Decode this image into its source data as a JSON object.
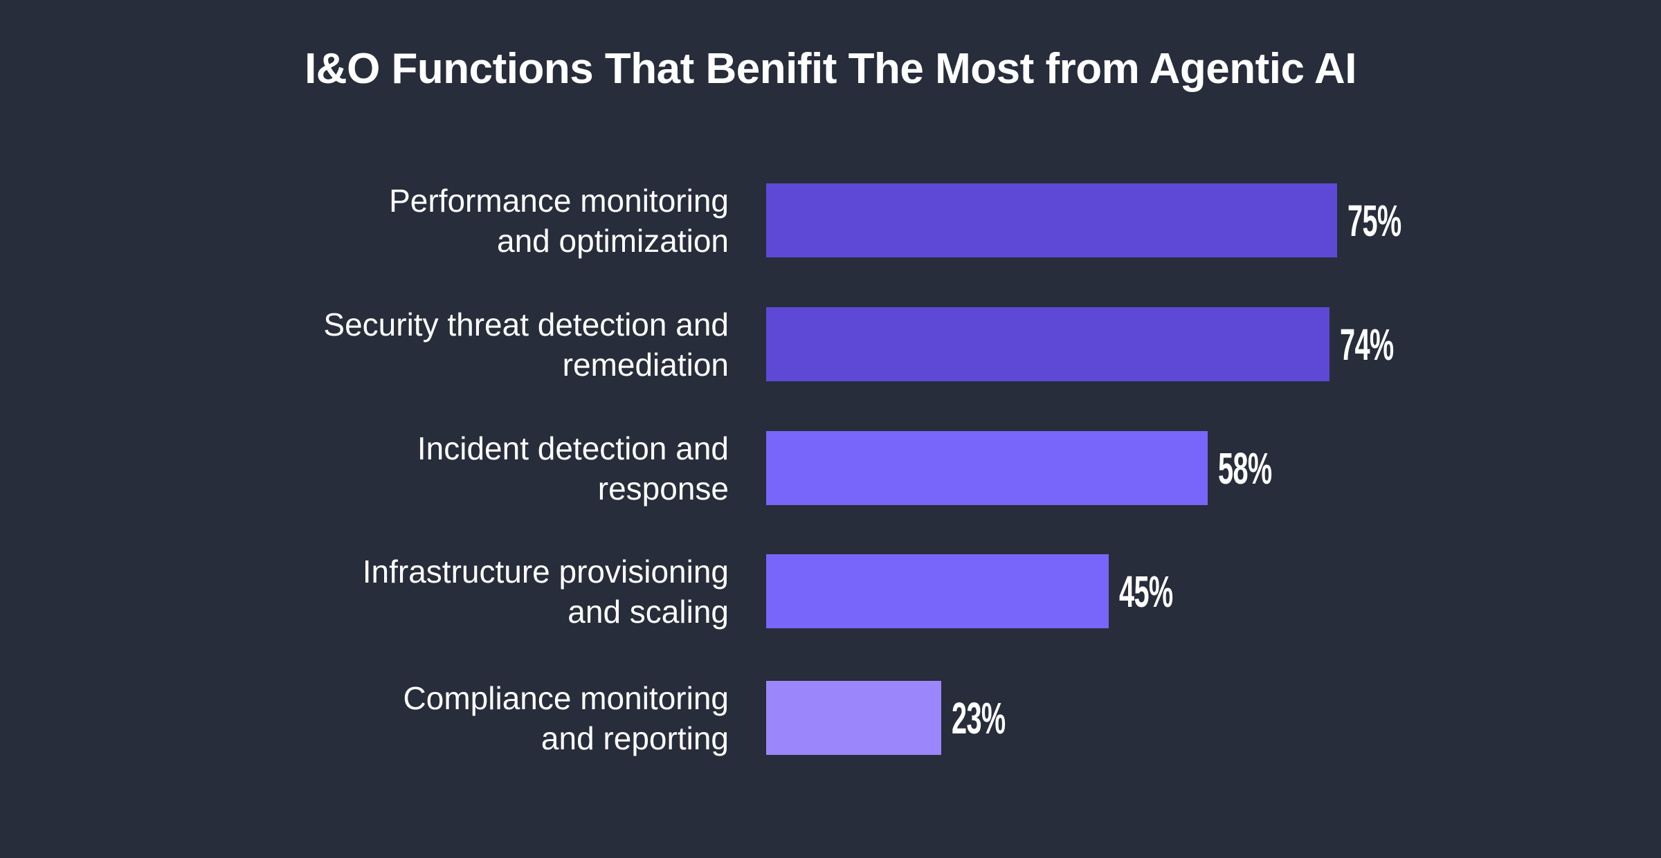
{
  "title": "I&O Functions That Benifit The Most from Agentic AI",
  "colors": {
    "background": "#272d3a",
    "bar_dark": "#5e48d6",
    "bar_mid": "#7866fa",
    "bar_light": "#9b86fb",
    "text": "#ffffff"
  },
  "rows": [
    {
      "label": "Performance monitoring\nand optimization",
      "value": 75,
      "value_label": "75%",
      "color": "#5e48d6"
    },
    {
      "label": "Security threat detection and\nremediation",
      "value": 74,
      "value_label": "74%",
      "color": "#5e48d6"
    },
    {
      "label": "Incident detection and\nresponse",
      "value": 58,
      "value_label": "58%",
      "color": "#7866fa"
    },
    {
      "label": "Infrastructure provisioning\nand scaling",
      "value": 45,
      "value_label": "45%",
      "color": "#7866fa"
    },
    {
      "label": "Compliance monitoring\nand reporting",
      "value": 23,
      "value_label": "23%",
      "color": "#9b86fb"
    }
  ],
  "chart_data": {
    "type": "bar",
    "orientation": "horizontal",
    "title": "I&O Functions That Benifit The Most from Agentic AI",
    "categories": [
      "Performance monitoring and optimization",
      "Security threat detection and remediation",
      "Incident detection and response",
      "Infrastructure provisioning and scaling",
      "Compliance monitoring and reporting"
    ],
    "values": [
      75,
      74,
      58,
      45,
      23
    ],
    "value_labels": [
      "75%",
      "74%",
      "58%",
      "45%",
      "23%"
    ],
    "bar_colors": [
      "#5e48d6",
      "#5e48d6",
      "#7866fa",
      "#7866fa",
      "#9b86fb"
    ],
    "xlabel": "",
    "ylabel": "",
    "xlim": [
      0,
      100
    ],
    "unit": "%",
    "grid": false,
    "legend": null,
    "data_labels": "end-of-bar"
  }
}
